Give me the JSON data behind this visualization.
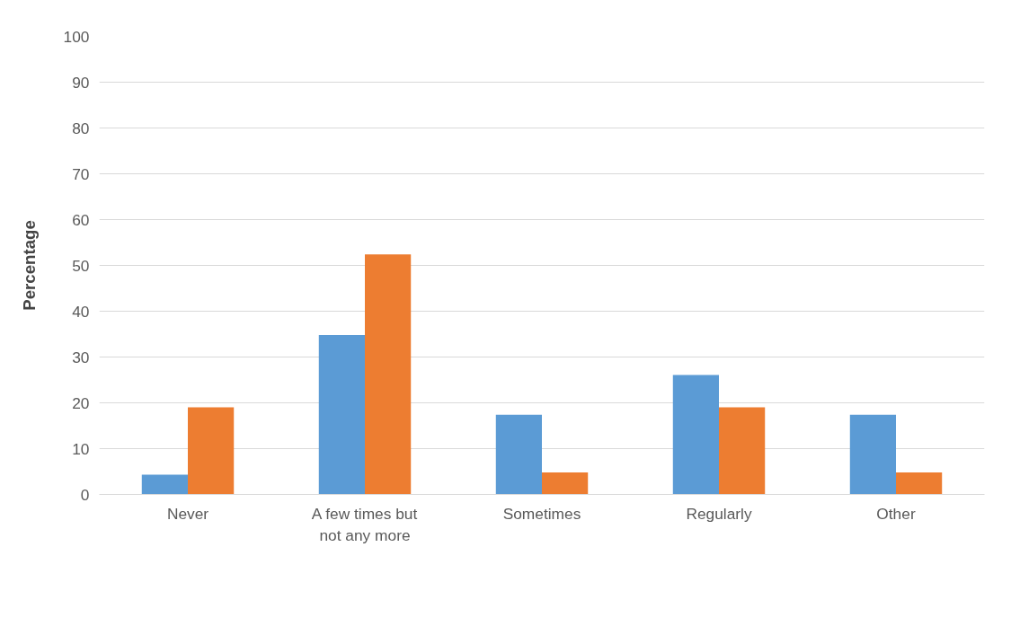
{
  "chart_data": {
    "type": "bar",
    "ylabel": "Percentage",
    "categories": [
      "Never",
      "A few times but not any more",
      "Sometimes",
      "Regularly",
      "Other"
    ],
    "series": [
      {
        "color": "#5b9bd5",
        "values": [
          4.3,
          34.8,
          17.4,
          26.1,
          17.4
        ]
      },
      {
        "color": "#ed7d31",
        "values": [
          19.0,
          52.4,
          4.8,
          19.0,
          4.8
        ]
      }
    ],
    "ylim": [
      0,
      100
    ],
    "yticks": [
      0,
      10,
      20,
      30,
      40,
      50,
      60,
      70,
      80,
      90,
      100
    ],
    "grid": "y"
  }
}
